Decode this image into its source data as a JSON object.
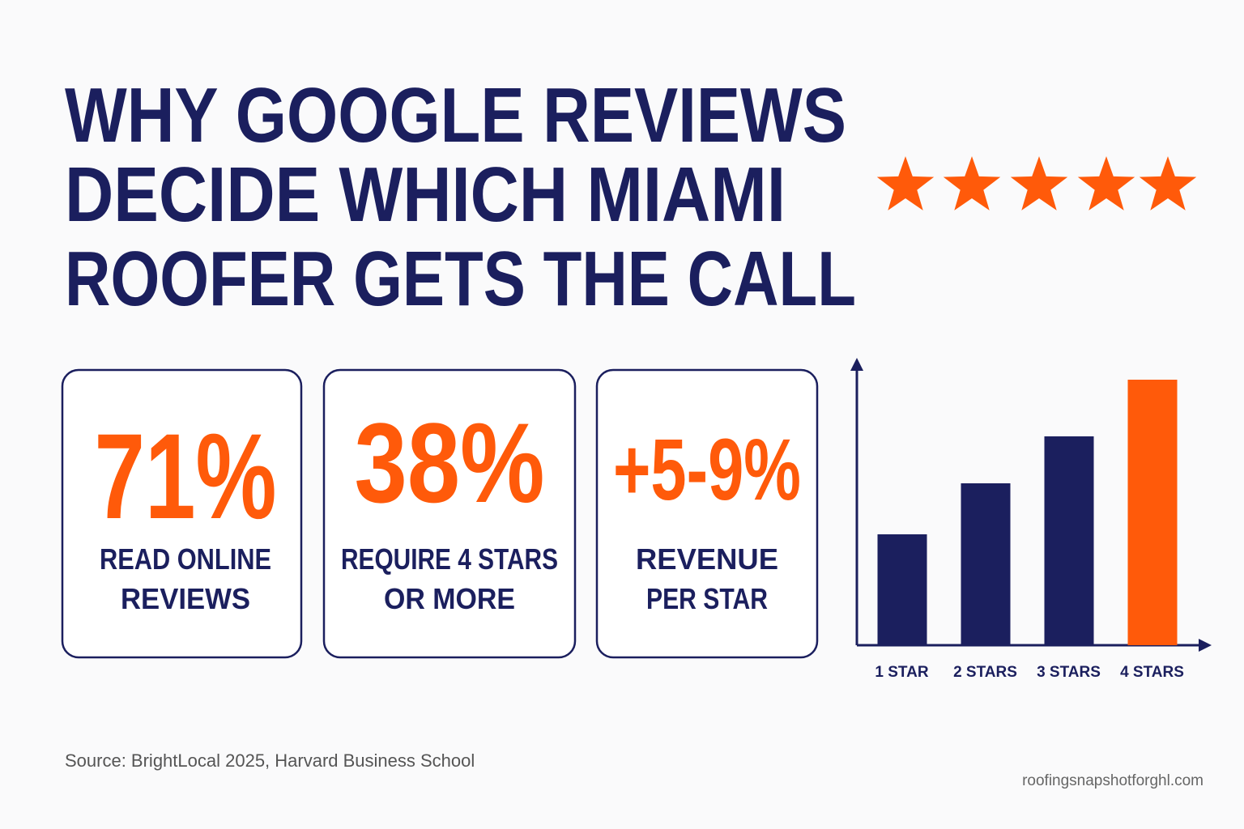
{
  "header": {
    "title_lines": [
      "WHY GOOGLE REVIEWS",
      "DECIDE WHICH MIAMI",
      "ROOFER GETS THE CALL"
    ]
  },
  "stats": [
    {
      "value": "71%",
      "label_lines": [
        "READ ONLINE",
        "REVIEWS"
      ]
    },
    {
      "value": "38%",
      "label_lines": [
        "REQUIRE 4 STARS",
        "OR MORE"
      ]
    },
    {
      "value": "+5-9%",
      "label_lines": [
        "REVENUE",
        "PER STAR"
      ]
    }
  ],
  "chart_data": {
    "type": "bar",
    "categories": [
      "1 STAR",
      "2 STARS",
      "3 STARS",
      "4 STARS"
    ],
    "values": [
      137,
      200,
      258,
      328
    ],
    "colors": [
      "#1b1f5e",
      "#1b1f5e",
      "#1b1f5e",
      "#ff5a0a"
    ],
    "ylim": [
      0,
      352
    ]
  },
  "footer": {
    "source": "Source: BrightLocal 2025, Harvard Business School",
    "website": "roofingsnapshotforghl.com"
  }
}
